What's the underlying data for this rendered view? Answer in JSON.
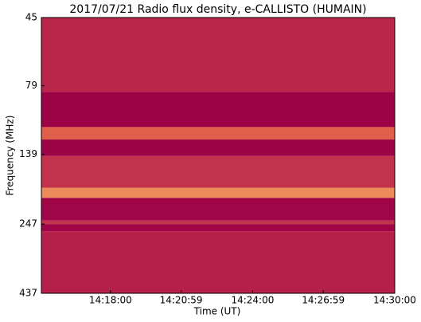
{
  "chart_data": {
    "type": "spectrogram",
    "title": "2017/07/21  Radio flux density, e-CALLISTO (HUMAIN)",
    "x_label": "Time (UT)",
    "y_label": "Frequency (MHz)",
    "xlim": [
      "14:15:05",
      "14:30:00"
    ],
    "xticks": [
      "14:18:00",
      "14:20:59",
      "14:24:00",
      "14:26:59",
      "14:30:00"
    ],
    "ylim": [
      45,
      437
    ],
    "yticks": [
      45,
      79,
      139,
      247,
      437
    ],
    "yscale": "log",
    "y_reversed": true,
    "colorscale": [
      "#9b0047",
      "#b8224a",
      "#e8704a",
      "#fae08a"
    ],
    "bands": [
      {
        "range": [
          45,
          83
        ],
        "level": 0.35
      },
      {
        "range": [
          83,
          111
        ],
        "level": 0.02
      },
      {
        "range": [
          111,
          123
        ],
        "level": 0.6
      },
      {
        "range": [
          123,
          141
        ],
        "level": 0.03
      },
      {
        "range": [
          141,
          183
        ],
        "level": 0.4
      },
      {
        "range": [
          183,
          199
        ],
        "level": 0.75
      },
      {
        "range": [
          199,
          240
        ],
        "level": 0.05
      },
      {
        "range": [
          240,
          247
        ],
        "level": 0.4
      },
      {
        "range": [
          247,
          262
        ],
        "level": 0.05
      },
      {
        "range": [
          262,
          437
        ],
        "level": 0.3
      }
    ]
  }
}
